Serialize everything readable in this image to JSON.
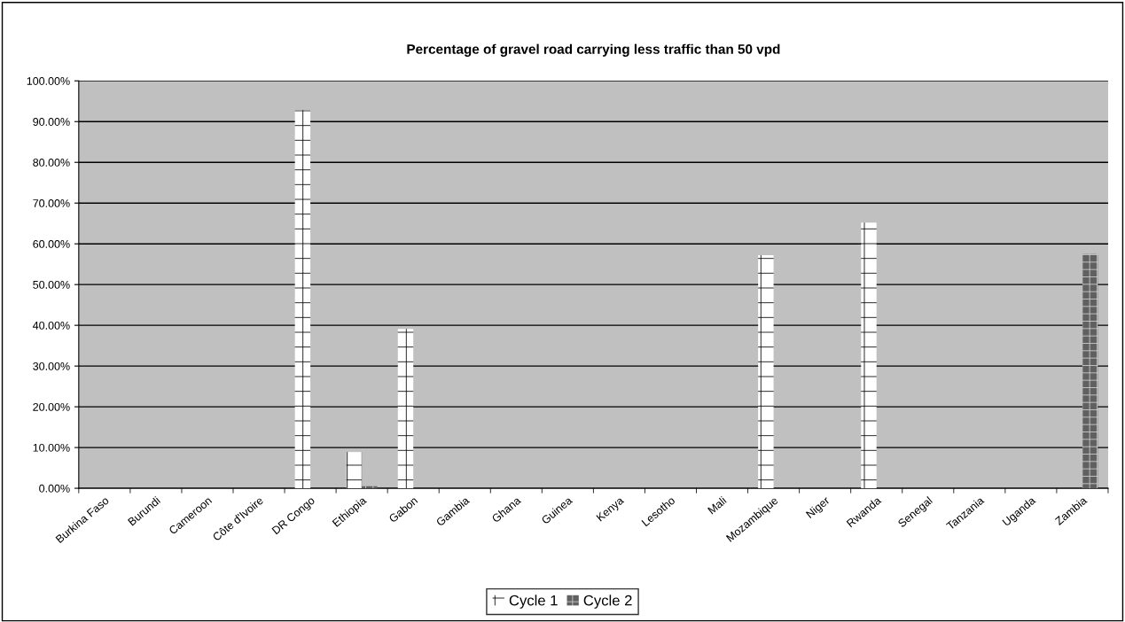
{
  "chart_data": {
    "type": "bar",
    "title": "Percentage of gravel road carrying less traffic than 50 vpd",
    "categories": [
      "Burkina Faso",
      "Burundi",
      "Cameroon",
      "Côte d'Ivoire",
      "DR Congo",
      "Ethiopia",
      "Gabon",
      "Gambia",
      "Ghana",
      "Guinea",
      "Kenya",
      "Lesotho",
      "Mali",
      "Mozambique",
      "Niger",
      "Rwanda",
      "Senegal",
      "Tanzania",
      "Uganda",
      "Zambia"
    ],
    "series": [
      {
        "name": "Cycle 1",
        "color": "#ffffff",
        "values": [
          null,
          null,
          null,
          null,
          92.8,
          8.9,
          39.1,
          null,
          null,
          null,
          null,
          null,
          null,
          57.2,
          null,
          65.2,
          null,
          null,
          null,
          null
        ]
      },
      {
        "name": "Cycle 2",
        "color": "#606060",
        "values": [
          null,
          null,
          null,
          null,
          null,
          0.5,
          null,
          null,
          null,
          null,
          null,
          null,
          null,
          null,
          null,
          null,
          null,
          null,
          null,
          57.5
        ]
      }
    ],
    "ylim": [
      0,
      100
    ],
    "yticks": [
      {
        "value": 0,
        "label": "0.00%"
      },
      {
        "value": 10,
        "label": "10.00%"
      },
      {
        "value": 20,
        "label": "20.00%"
      },
      {
        "value": 30,
        "label": "30.00%"
      },
      {
        "value": 40,
        "label": "40.00%"
      },
      {
        "value": 50,
        "label": "50.00%"
      },
      {
        "value": 60,
        "label": "60.00%"
      },
      {
        "value": 70,
        "label": "70.00%"
      },
      {
        "value": 80,
        "label": "80.00%"
      },
      {
        "value": 90,
        "label": "90.00%"
      },
      {
        "value": 100,
        "label": "100.00%"
      }
    ],
    "grid": "y",
    "legend": "bottom"
  }
}
